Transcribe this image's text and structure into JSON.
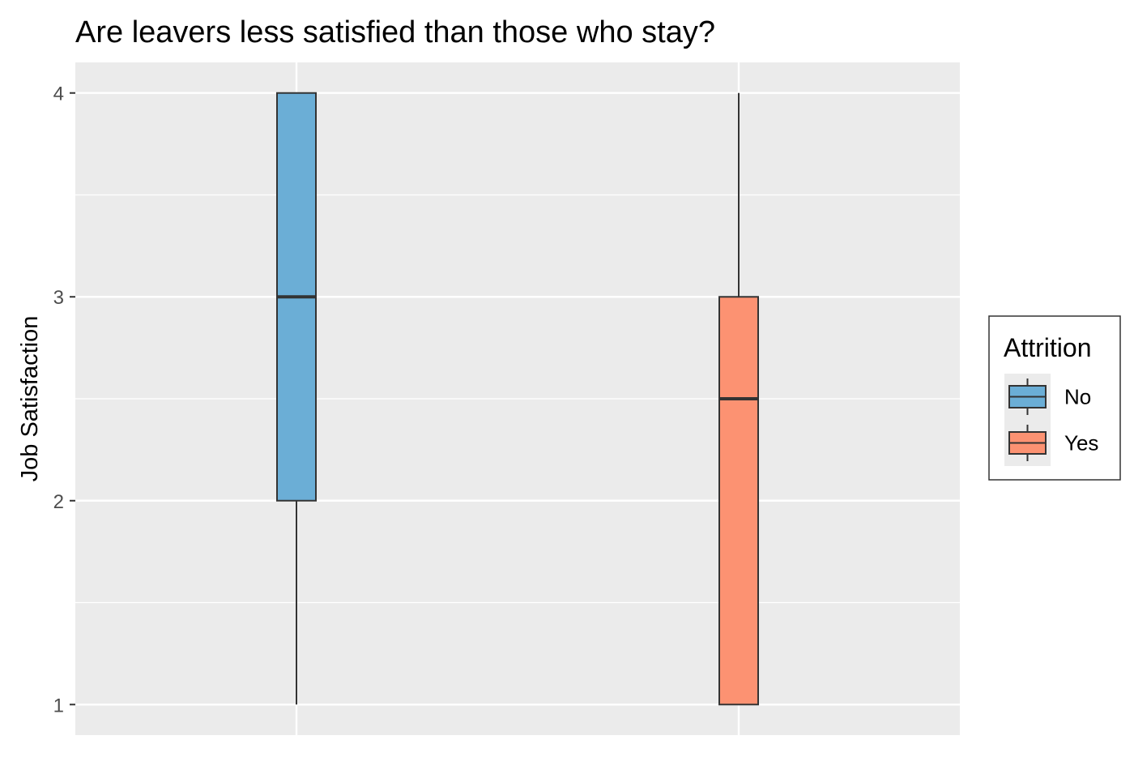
{
  "chart_data": {
    "type": "box",
    "title": "Are leavers less satisfied than those who stay?",
    "xlabel": "",
    "ylabel": "Job Satisfaction",
    "ylim": [
      0.85,
      4.15
    ],
    "y_ticks": [
      "1",
      "2",
      "3",
      "4"
    ],
    "grid": true,
    "legend": {
      "title": "Attrition",
      "placement": "right",
      "entries": [
        "No",
        "Yes"
      ]
    },
    "groups": [
      {
        "name": "No",
        "min": 1,
        "q1": 2,
        "median": 3,
        "q3": 4,
        "max": 4,
        "color": "#6baed6"
      },
      {
        "name": "Yes",
        "min": 1,
        "q1": 1,
        "median": 2.5,
        "q3": 3,
        "max": 4,
        "color": "#fc9272"
      }
    ],
    "colors": {
      "panel_background": "#ebebeb",
      "grid_line": "#ffffff",
      "box_outline": "#333333",
      "tick_text": "#4d4d4d"
    }
  }
}
